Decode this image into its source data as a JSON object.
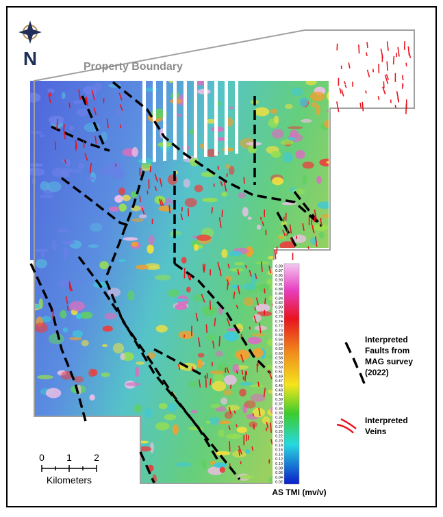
{
  "north_label": "N",
  "boundary_label": "Property Boundary",
  "legend": {
    "faults": [
      "Interpreted",
      "Faults from",
      "MAG survey",
      "(2022)"
    ],
    "veins": [
      "Interpreted",
      "Veins"
    ]
  },
  "colorbar": {
    "title": "AS TMI (mv/v)",
    "labels": [
      "0.99",
      "0.97",
      "0.95",
      "0.93",
      "0.91",
      "0.88",
      "0.86",
      "0.84",
      "0.82",
      "0.80",
      "0.78",
      "0.76",
      "0.74",
      "0.72",
      "0.70",
      "0.68",
      "0.66",
      "0.64",
      "0.62",
      "0.60",
      "0.58",
      "0.55",
      "0.53",
      "0.51",
      "0.49",
      "0.47",
      "0.45",
      "0.43",
      "0.41",
      "0.39",
      "0.37",
      "0.35",
      "0.33",
      "0.31",
      "0.29",
      "0.27",
      "0.25",
      "0.22",
      "0.20",
      "0.18",
      "0.16",
      "0.14",
      "0.12",
      "0.10",
      "0.08",
      "0.06",
      "0.04",
      "0.02"
    ]
  },
  "scale_bar": {
    "ticks": [
      "0",
      "1",
      "2"
    ],
    "unit": "Kilometers"
  }
}
